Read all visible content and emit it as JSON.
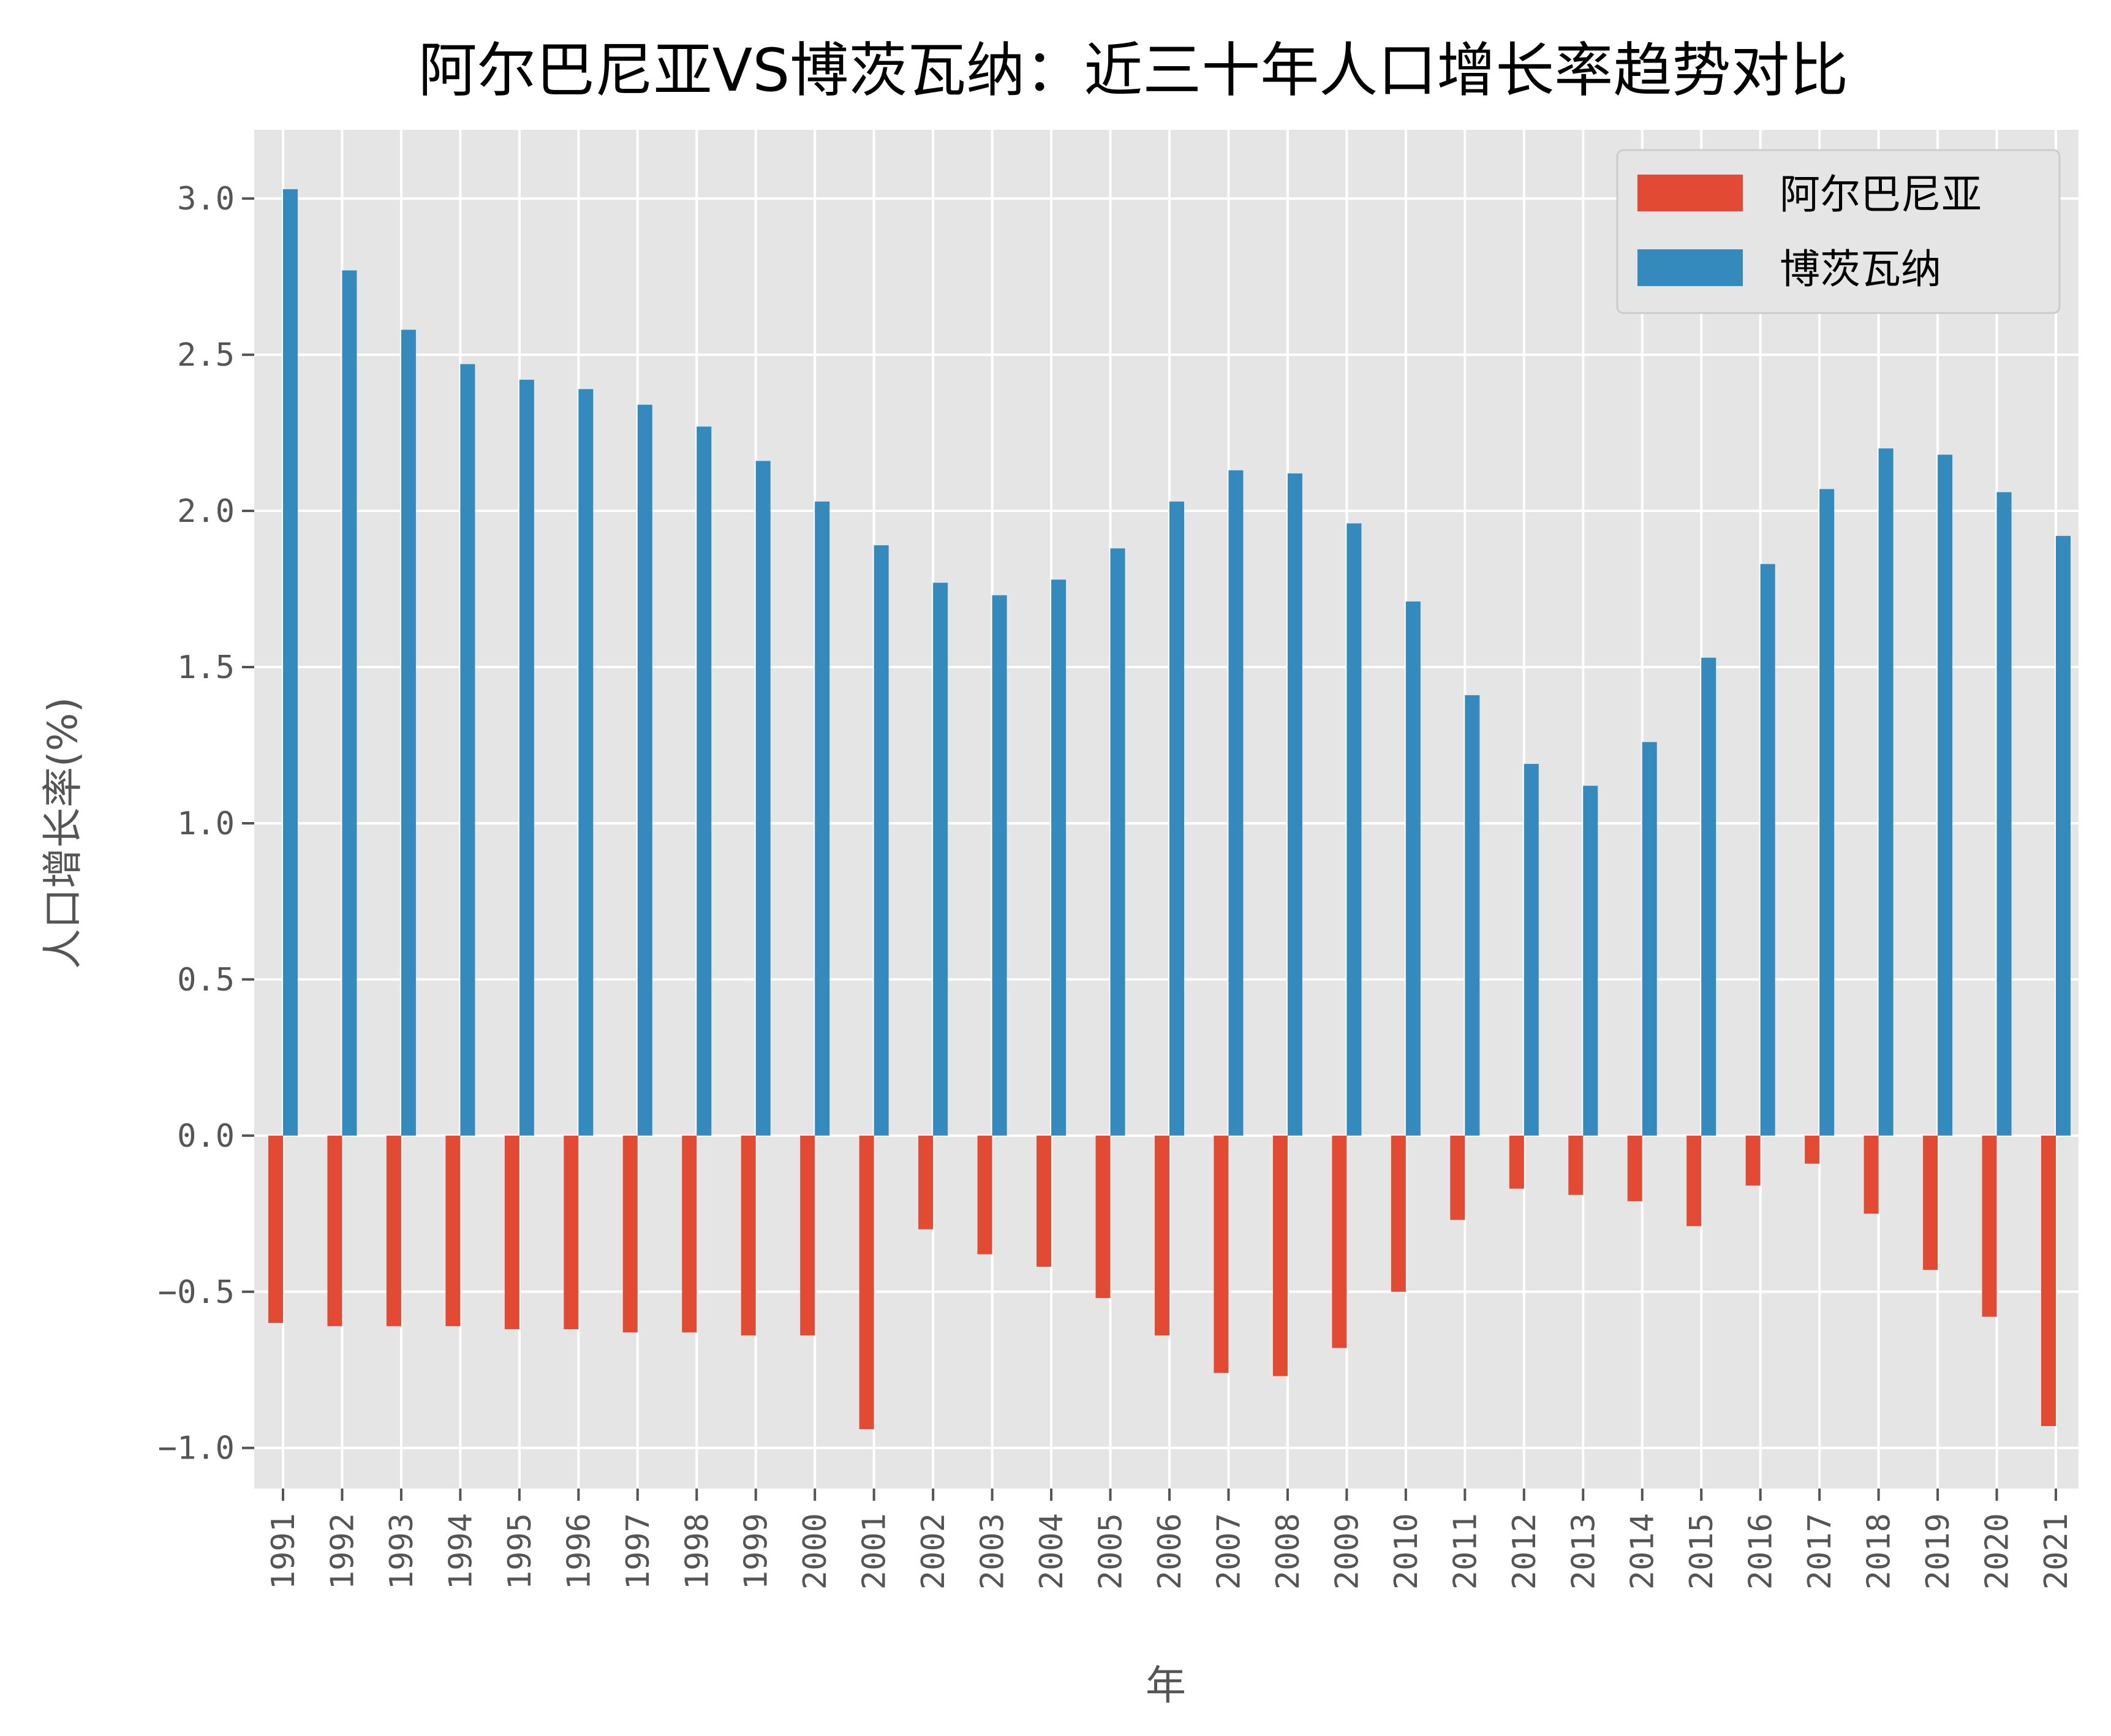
{
  "chart_data": {
    "type": "bar",
    "title": "阿尔巴尼亚VS博茨瓦纳：近三十年人口增长率趋势对比",
    "xlabel": "年",
    "ylabel": "人口增长率(%)",
    "ylim": [
      -1.13,
      3.22
    ],
    "yticks": [
      -1.0,
      -0.5,
      0.0,
      0.5,
      1.0,
      1.5,
      2.0,
      2.5,
      3.0
    ],
    "ytick_labels": [
      "−1.0",
      "−0.5",
      "0.0",
      "0.5",
      "1.0",
      "1.5",
      "2.0",
      "2.5",
      "3.0"
    ],
    "grid": true,
    "legend_position": "top-right",
    "categories": [
      "1991",
      "1992",
      "1993",
      "1994",
      "1995",
      "1996",
      "1997",
      "1998",
      "1999",
      "2000",
      "2001",
      "2002",
      "2003",
      "2004",
      "2005",
      "2006",
      "2007",
      "2008",
      "2009",
      "2010",
      "2011",
      "2012",
      "2013",
      "2014",
      "2015",
      "2016",
      "2017",
      "2018",
      "2019",
      "2020",
      "2021"
    ],
    "series": [
      {
        "name": "阿尔巴尼亚",
        "color": "#E24A33",
        "values": [
          -0.6,
          -0.61,
          -0.61,
          -0.61,
          -0.62,
          -0.62,
          -0.63,
          -0.63,
          -0.64,
          -0.64,
          -0.94,
          -0.3,
          -0.38,
          -0.42,
          -0.52,
          -0.64,
          -0.76,
          -0.77,
          -0.68,
          -0.5,
          -0.27,
          -0.17,
          -0.19,
          -0.21,
          -0.29,
          -0.16,
          -0.09,
          -0.25,
          -0.43,
          -0.58,
          -0.93
        ]
      },
      {
        "name": "博茨瓦纳",
        "color": "#348ABD",
        "values": [
          3.03,
          2.77,
          2.58,
          2.47,
          2.42,
          2.39,
          2.34,
          2.27,
          2.16,
          2.03,
          1.89,
          1.77,
          1.73,
          1.78,
          1.88,
          2.03,
          2.13,
          2.12,
          1.96,
          1.71,
          1.41,
          1.19,
          1.12,
          1.26,
          1.53,
          1.83,
          2.07,
          2.2,
          2.18,
          2.06,
          1.92
        ]
      }
    ]
  }
}
